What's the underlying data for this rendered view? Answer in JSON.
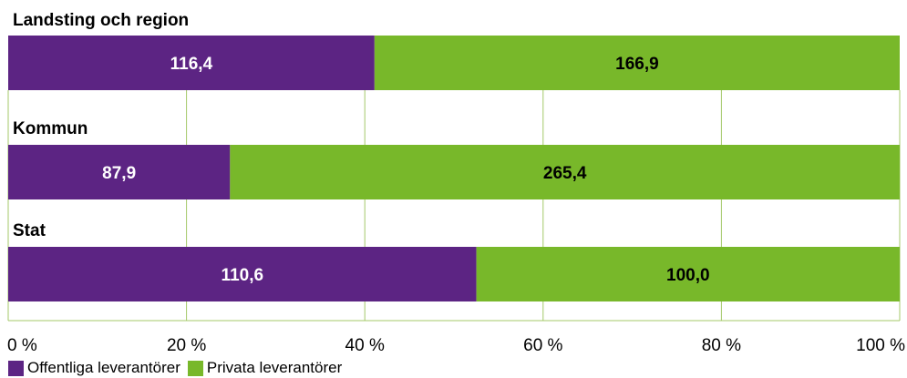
{
  "chart_data": {
    "type": "bar",
    "orientation": "horizontal",
    "stacked": true,
    "normalized": true,
    "categories": [
      "Landsting och region",
      "Kommun",
      "Stat"
    ],
    "series": [
      {
        "name": "Offentliga leverantörer",
        "values": [
          116.4,
          87.9,
          110.6
        ],
        "labels": [
          "116,4",
          "87,9",
          "110,6"
        ],
        "color": "#5c2483",
        "label_color": "#ffffff"
      },
      {
        "name": "Privata leverantörer",
        "values": [
          166.9,
          265.4,
          100.0
        ],
        "labels": [
          "166,9",
          "265,4",
          "100,0"
        ],
        "color": "#78b82a",
        "label_color": "#000000"
      }
    ],
    "x_ticks": [
      "0 %",
      "20 %",
      "40 %",
      "60 %",
      "80 %",
      "100 %"
    ],
    "xlim": [
      0,
      100
    ],
    "grid": true,
    "grid_color": "#a4c96a",
    "legend_position": "bottom-left"
  }
}
